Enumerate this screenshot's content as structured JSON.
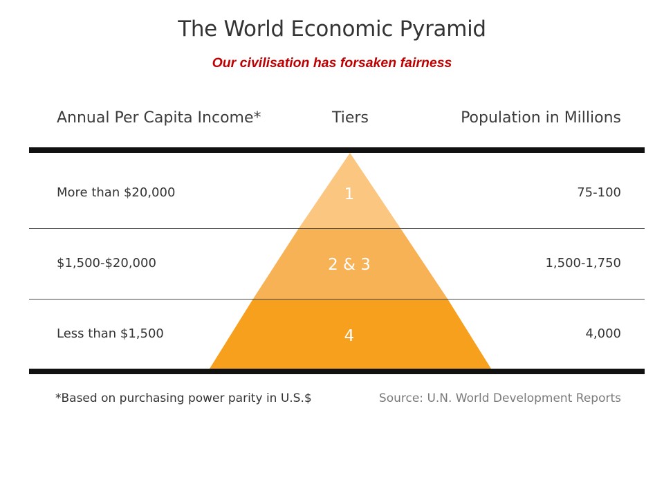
{
  "title": "The World Economic Pyramid",
  "subtitle": "Our civilisation has forsaken fairness",
  "headers": {
    "income": "Annual Per Capita Income*",
    "tiers": "Tiers",
    "population": "Population in Millions"
  },
  "rows": [
    {
      "income": "More than $20,000",
      "tier": "1",
      "population": "75-100",
      "color": "#fbc680"
    },
    {
      "income": "$1,500-$20,000",
      "tier": "2 & 3",
      "population": "1,500-1,750",
      "color": "#f8b256"
    },
    {
      "income": "Less than $1,500",
      "tier": "4",
      "population": "4,000",
      "color": "#f6a01e"
    }
  ],
  "footnote": "*Based on purchasing power parity in U.S.$",
  "source": "Source: U.N. World Development Reports",
  "colors": {
    "subtitle": "#c00000",
    "rules": "#111111"
  }
}
